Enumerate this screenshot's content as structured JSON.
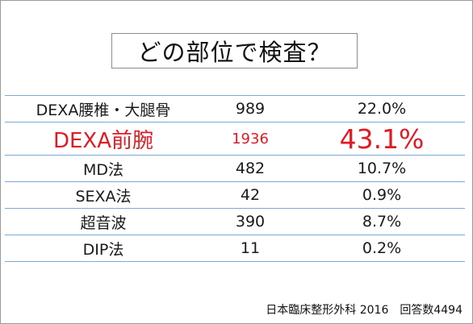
{
  "title": "どの部位で検査？",
  "table": {
    "rows": [
      {
        "method": "DEXA腰椎・大腿骨",
        "count": "989",
        "percent": "22.0%"
      },
      {
        "method": "DEXA前腕",
        "count": "1936",
        "percent": "43.1%",
        "highlight": true
      },
      {
        "method": "MD法",
        "count": "482",
        "percent": "10.7%"
      },
      {
        "method": "SEXA法",
        "count": "42",
        "percent": "0.9%"
      },
      {
        "method": "超音波",
        "count": "390",
        "percent": "8.7%"
      },
      {
        "method": "DIP法",
        "count": "11",
        "percent": "0.2%"
      }
    ]
  },
  "source": "日本臨床整形外科 2016　回答数4494",
  "colors": {
    "highlight": "#e01b24",
    "rule_line": "#7ea8d2"
  }
}
